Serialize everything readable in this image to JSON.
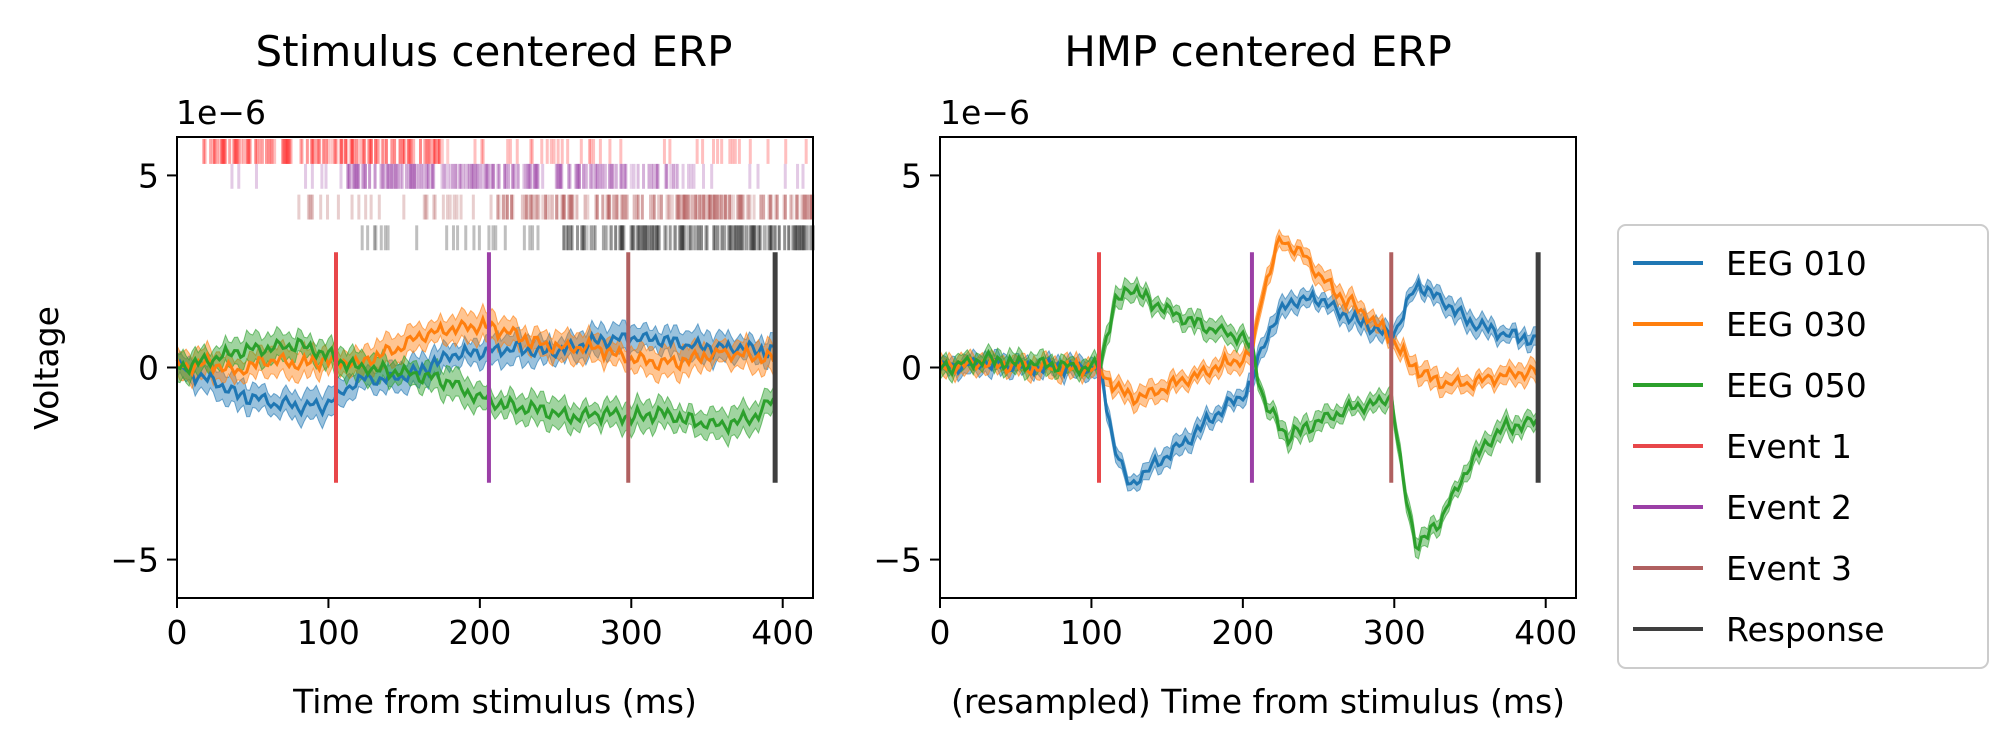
{
  "chart_data": [
    {
      "type": "line",
      "title": "Stimulus centered ERP",
      "xlabel": "Time from stimulus (ms)",
      "ylabel": "Voltage",
      "offset_label": "1e−6",
      "xlim": [
        0,
        420
      ],
      "ylim": [
        -6,
        6
      ],
      "xticks": [
        0,
        100,
        200,
        300,
        400
      ],
      "yticks": [
        5,
        0,
        -5
      ],
      "ytick_labels": [
        "5",
        "0",
        "−5"
      ],
      "grid": false,
      "series": [
        {
          "name": "EEG 010",
          "color": "#1f77b4",
          "x": [
            0,
            20,
            40,
            60,
            80,
            95,
            105,
            120,
            140,
            160,
            180,
            200,
            220,
            240,
            260,
            280,
            300,
            320,
            340,
            360,
            380,
            395
          ],
          "y": [
            0.0,
            -0.3,
            -0.7,
            -0.9,
            -1.0,
            -1.0,
            -0.8,
            -0.3,
            -0.3,
            -0.1,
            0.3,
            0.4,
            0.5,
            0.4,
            0.5,
            0.7,
            0.8,
            0.7,
            0.6,
            0.5,
            0.5,
            0.4
          ]
        },
        {
          "name": "EEG 030",
          "color": "#ff7f0e",
          "x": [
            0,
            20,
            40,
            60,
            80,
            100,
            120,
            140,
            160,
            180,
            200,
            220,
            240,
            260,
            280,
            300,
            320,
            340,
            360,
            380,
            395
          ],
          "y": [
            0.0,
            0.1,
            -0.1,
            0.2,
            0.1,
            0.2,
            0.1,
            0.4,
            0.8,
            1.0,
            1.1,
            0.9,
            0.6,
            0.5,
            0.5,
            0.2,
            0.1,
            0.2,
            0.4,
            0.3,
            0.2
          ]
        },
        {
          "name": "EEG 050",
          "color": "#2ca02c",
          "x": [
            0,
            20,
            40,
            60,
            80,
            100,
            120,
            140,
            160,
            180,
            200,
            220,
            240,
            260,
            280,
            300,
            320,
            340,
            360,
            380,
            395
          ],
          "y": [
            0.0,
            0.2,
            0.4,
            0.5,
            0.6,
            0.3,
            0.0,
            -0.1,
            -0.2,
            -0.4,
            -0.8,
            -1.0,
            -1.1,
            -1.3,
            -1.2,
            -1.3,
            -1.2,
            -1.4,
            -1.5,
            -1.3,
            -0.8
          ]
        }
      ],
      "event_lines": [
        {
          "name": "Event 1",
          "x": 105,
          "color": "#e8474a"
        },
        {
          "name": "Event 2",
          "x": 206,
          "color": "#9b3fa6"
        },
        {
          "name": "Event 3",
          "x": 298,
          "color": "#b06060"
        },
        {
          "name": "Response",
          "x": 395,
          "color": "#3f3f3f"
        }
      ],
      "event_rasters": [
        {
          "name": "Event 1",
          "color": "#ff0000",
          "x_range": [
            5,
            420
          ],
          "dense_range": [
            15,
            180
          ]
        },
        {
          "name": "Event 2",
          "color": "#8e2a99",
          "x_range": [
            20,
            415
          ],
          "dense_range": [
            110,
            330
          ]
        },
        {
          "name": "Event 3",
          "color": "#a53a3a",
          "x_range": [
            75,
            420
          ],
          "dense_range": [
            210,
            420
          ]
        },
        {
          "name": "Response",
          "color": "#000000",
          "x_range": [
            115,
            420
          ],
          "dense_range": [
            250,
            420
          ]
        }
      ]
    },
    {
      "type": "line",
      "title": "HMP centered ERP",
      "xlabel": "(resampled) Time from stimulus (ms)",
      "ylabel": "",
      "offset_label": "1e−6",
      "xlim": [
        0,
        420
      ],
      "ylim": [
        -6,
        6
      ],
      "xticks": [
        0,
        100,
        200,
        300,
        400
      ],
      "yticks": [
        5,
        0,
        -5
      ],
      "ytick_labels": [
        "5",
        "0",
        "−5"
      ],
      "grid": false,
      "series": [
        {
          "name": "EEG 010",
          "color": "#1f77b4",
          "x": [
            0,
            30,
            60,
            90,
            105,
            115,
            125,
            140,
            160,
            180,
            200,
            206,
            215,
            230,
            250,
            270,
            290,
            298,
            305,
            315,
            330,
            350,
            370,
            395
          ],
          "y": [
            0.0,
            0.1,
            0.0,
            0.0,
            0.0,
            -2.0,
            -3.1,
            -2.6,
            -2.0,
            -1.3,
            -0.7,
            -0.4,
            0.8,
            1.7,
            1.8,
            1.3,
            1.0,
            0.8,
            1.3,
            2.2,
            1.8,
            1.2,
            0.9,
            0.7
          ]
        },
        {
          "name": "EEG 030",
          "color": "#ff7f0e",
          "x": [
            0,
            30,
            60,
            90,
            105,
            115,
            130,
            150,
            170,
            190,
            206,
            212,
            225,
            240,
            260,
            280,
            298,
            310,
            330,
            350,
            370,
            395
          ],
          "y": [
            0.0,
            0.1,
            0.0,
            0.0,
            0.0,
            -0.5,
            -0.8,
            -0.5,
            -0.2,
            0.1,
            0.3,
            1.8,
            3.4,
            2.9,
            2.0,
            1.4,
            0.8,
            0.1,
            -0.4,
            -0.4,
            -0.2,
            -0.1
          ]
        },
        {
          "name": "EEG 050",
          "color": "#2ca02c",
          "x": [
            0,
            30,
            60,
            90,
            105,
            115,
            125,
            140,
            160,
            180,
            200,
            206,
            215,
            230,
            250,
            270,
            290,
            298,
            305,
            315,
            330,
            350,
            370,
            395
          ],
          "y": [
            0.0,
            0.2,
            0.1,
            0.0,
            0.0,
            1.6,
            2.1,
            1.7,
            1.3,
            1.0,
            0.8,
            0.5,
            -1.0,
            -1.8,
            -1.4,
            -1.1,
            -0.9,
            -0.7,
            -2.8,
            -4.7,
            -4.0,
            -2.5,
            -1.6,
            -1.4
          ]
        }
      ],
      "event_lines": [
        {
          "name": "Event 1",
          "x": 105,
          "color": "#e8474a"
        },
        {
          "name": "Event 2",
          "x": 206,
          "color": "#9b3fa6"
        },
        {
          "name": "Event 3",
          "x": 298,
          "color": "#b06060"
        },
        {
          "name": "Response",
          "x": 395,
          "color": "#3f3f3f"
        }
      ]
    }
  ],
  "legend": {
    "placement": "right",
    "entries": [
      {
        "label": "EEG 010",
        "color": "#1f77b4"
      },
      {
        "label": "EEG 030",
        "color": "#ff7f0e"
      },
      {
        "label": "EEG 050",
        "color": "#2ca02c"
      },
      {
        "label": "Event 1",
        "color": "#e8474a"
      },
      {
        "label": "Event 2",
        "color": "#9b3fa6"
      },
      {
        "label": "Event 3",
        "color": "#b06060"
      },
      {
        "label": "Response",
        "color": "#3f3f3f"
      }
    ]
  }
}
